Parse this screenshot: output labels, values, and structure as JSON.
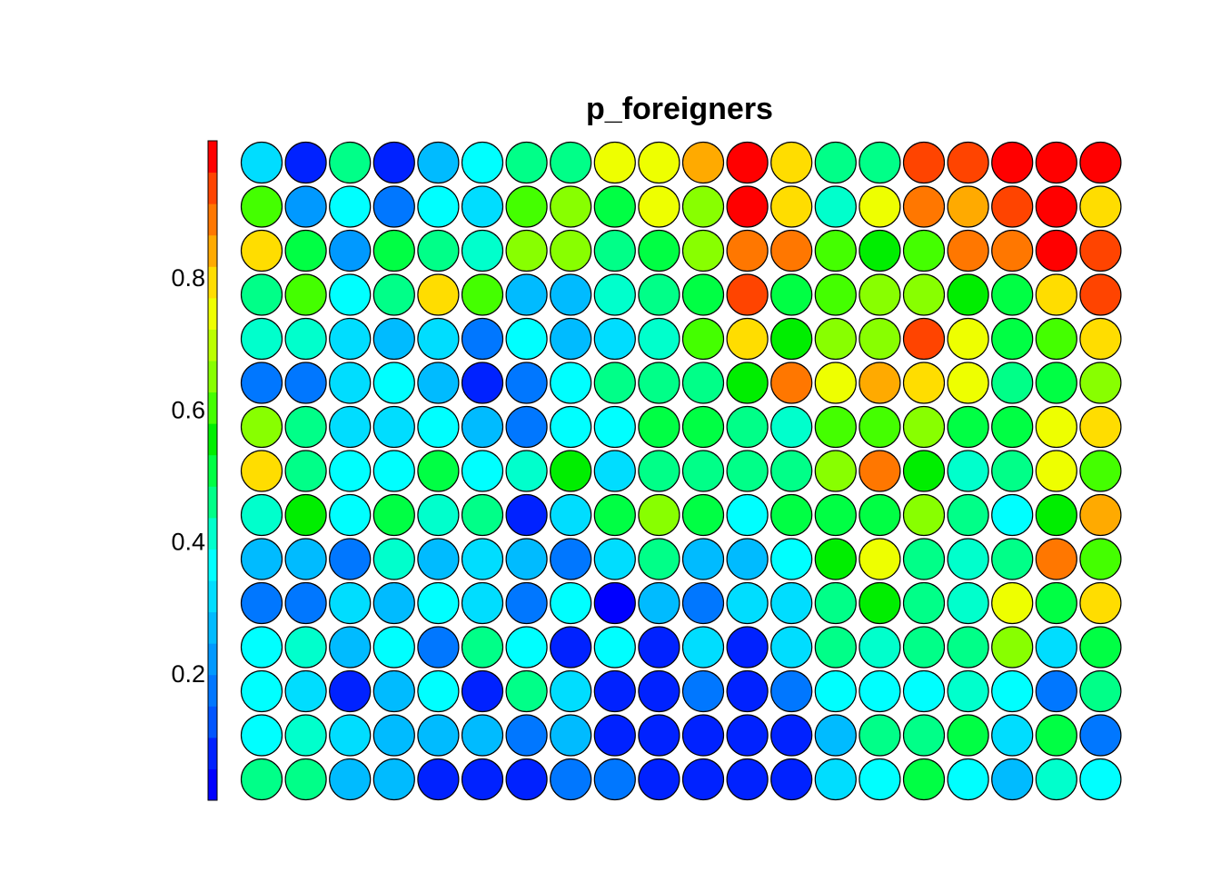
{
  "chart_data": {
    "type": "heatmap",
    "subtype": "som-circle-grid",
    "title": "p_foreigners",
    "xlabel": "",
    "ylabel": "",
    "rows": 15,
    "cols": 20,
    "color_scale": {
      "palette": "rainbow (blue to red)",
      "range": [
        0,
        1
      ],
      "colors": [
        "#0000ff",
        "#0022ff",
        "#0055ff",
        "#0077ff",
        "#0099ff",
        "#00bbff",
        "#00ddff",
        "#00ffff",
        "#00ffcc",
        "#00ff88",
        "#00ff44",
        "#00ee00",
        "#44ff00",
        "#88ff00",
        "#bbff00",
        "#eeff00",
        "#ffdd00",
        "#ffaa00",
        "#ff7700",
        "#ff4400",
        "#ff0000"
      ],
      "legend_position": "left",
      "ticks": [
        {
          "value": 0.2,
          "label": "0.2"
        },
        {
          "value": 0.4,
          "label": "0.4"
        },
        {
          "value": 0.6,
          "label": "0.6"
        },
        {
          "value": 0.8,
          "label": "0.8"
        }
      ]
    },
    "values": [
      [
        0.29,
        0.07,
        0.43,
        0.07,
        0.23,
        0.34,
        0.47,
        0.43,
        0.76,
        0.76,
        0.87,
        0.99,
        0.81,
        0.46,
        0.47,
        0.95,
        0.95,
        0.99,
        0.99,
        0.99
      ],
      [
        0.61,
        0.22,
        0.34,
        0.17,
        0.37,
        0.28,
        0.62,
        0.66,
        0.52,
        0.75,
        0.66,
        0.99,
        0.81,
        0.38,
        0.76,
        0.9,
        0.86,
        0.94,
        0.99,
        0.81
      ],
      [
        0.81,
        0.52,
        0.22,
        0.52,
        0.47,
        0.39,
        0.65,
        0.66,
        0.47,
        0.52,
        0.65,
        0.91,
        0.91,
        0.61,
        0.57,
        0.62,
        0.9,
        0.91,
        0.99,
        0.95
      ],
      [
        0.45,
        0.61,
        0.34,
        0.43,
        0.81,
        0.61,
        0.23,
        0.23,
        0.38,
        0.47,
        0.52,
        0.95,
        0.52,
        0.61,
        0.65,
        0.66,
        0.57,
        0.52,
        0.81,
        0.95
      ],
      [
        0.38,
        0.38,
        0.29,
        0.23,
        0.29,
        0.15,
        0.34,
        0.23,
        0.29,
        0.38,
        0.61,
        0.81,
        0.57,
        0.66,
        0.66,
        0.95,
        0.76,
        0.52,
        0.61,
        0.81
      ],
      [
        0.15,
        0.15,
        0.29,
        0.34,
        0.23,
        0.07,
        0.15,
        0.34,
        0.43,
        0.43,
        0.43,
        0.57,
        0.91,
        0.76,
        0.86,
        0.81,
        0.76,
        0.43,
        0.52,
        0.66
      ],
      [
        0.66,
        0.47,
        0.29,
        0.29,
        0.34,
        0.23,
        0.15,
        0.34,
        0.34,
        0.52,
        0.52,
        0.47,
        0.38,
        0.61,
        0.61,
        0.66,
        0.52,
        0.52,
        0.76,
        0.81
      ],
      [
        0.81,
        0.47,
        0.34,
        0.34,
        0.52,
        0.34,
        0.38,
        0.57,
        0.29,
        0.43,
        0.43,
        0.47,
        0.43,
        0.66,
        0.91,
        0.57,
        0.38,
        0.43,
        0.76,
        0.61
      ],
      [
        0.38,
        0.57,
        0.34,
        0.52,
        0.38,
        0.43,
        0.07,
        0.29,
        0.52,
        0.66,
        0.52,
        0.34,
        0.52,
        0.52,
        0.52,
        0.66,
        0.43,
        0.34,
        0.57,
        0.86
      ],
      [
        0.23,
        0.23,
        0.15,
        0.38,
        0.23,
        0.29,
        0.23,
        0.15,
        0.29,
        0.47,
        0.23,
        0.23,
        0.34,
        0.57,
        0.76,
        0.43,
        0.38,
        0.43,
        0.91,
        0.61
      ],
      [
        0.15,
        0.15,
        0.29,
        0.23,
        0.34,
        0.29,
        0.15,
        0.34,
        0.01,
        0.23,
        0.15,
        0.29,
        0.29,
        0.43,
        0.57,
        0.47,
        0.38,
        0.76,
        0.52,
        0.81
      ],
      [
        0.34,
        0.38,
        0.23,
        0.34,
        0.15,
        0.43,
        0.34,
        0.03,
        0.34,
        0.07,
        0.29,
        0.03,
        0.29,
        0.43,
        0.38,
        0.47,
        0.43,
        0.66,
        0.29,
        0.52
      ],
      [
        0.34,
        0.29,
        0.07,
        0.23,
        0.34,
        0.07,
        0.43,
        0.29,
        0.07,
        0.03,
        0.15,
        0.07,
        0.15,
        0.34,
        0.34,
        0.34,
        0.38,
        0.34,
        0.15,
        0.47
      ],
      [
        0.34,
        0.38,
        0.29,
        0.23,
        0.23,
        0.23,
        0.15,
        0.23,
        0.03,
        0.03,
        0.03,
        0.07,
        0.07,
        0.23,
        0.47,
        0.43,
        0.52,
        0.29,
        0.52,
        0.15
      ],
      [
        0.45,
        0.43,
        0.23,
        0.23,
        0.03,
        0.03,
        0.07,
        0.15,
        0.15,
        0.03,
        0.03,
        0.03,
        0.03,
        0.29,
        0.34,
        0.52,
        0.34,
        0.23,
        0.38,
        0.34
      ]
    ]
  }
}
